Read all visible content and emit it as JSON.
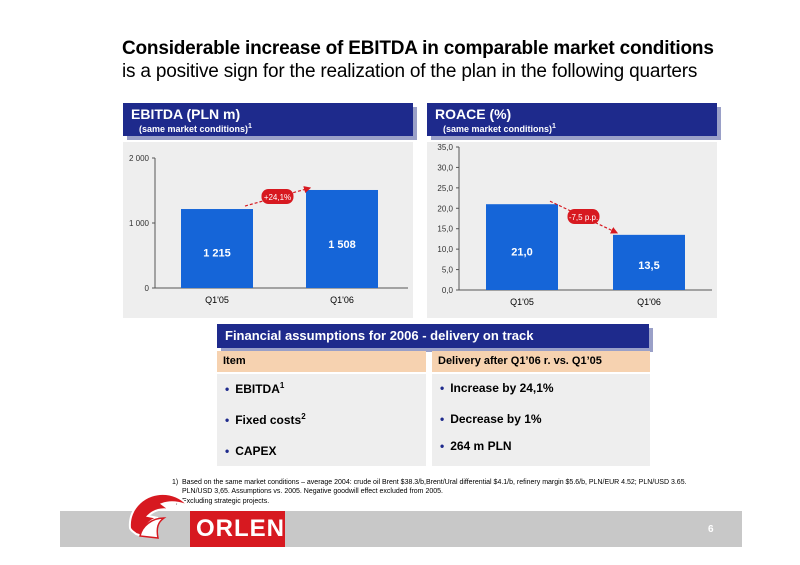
{
  "title": {
    "line1": "Considerable increase of EBITDA in comparable market conditions",
    "line2": "is a positive sign for the realization of the plan in the following quarters"
  },
  "ebitda_panel": {
    "heading": "EBITDA (PLN m)",
    "subheading": "(same market conditions)",
    "sub_sup": "1",
    "change_label": "+24,1%"
  },
  "roace_panel": {
    "heading": "ROACE (%)",
    "subheading": "(same market conditions)",
    "sub_sup": "1",
    "change_label": "-7,5 p.p."
  },
  "chart_data": [
    {
      "type": "bar",
      "title": "EBITDA (PLN m)",
      "categories": [
        "Q1'05",
        "Q1'06"
      ],
      "values": [
        1215,
        1508
      ],
      "value_labels": [
        "1 215",
        "1 508"
      ],
      "yticks": [
        "0",
        "1 000",
        "2 000"
      ],
      "ylim": [
        0,
        2000
      ],
      "bar_color": "#1565d8",
      "grid": false
    },
    {
      "type": "bar",
      "title": "ROACE (%)",
      "categories": [
        "Q1'05",
        "Q1'06"
      ],
      "values": [
        21.0,
        13.5
      ],
      "value_labels": [
        "21,0",
        "13,5"
      ],
      "yticks": [
        "0,0",
        "5,0",
        "10,0",
        "15,0",
        "20,0",
        "25,0",
        "30,0",
        "35,0"
      ],
      "ylim": [
        0,
        35
      ],
      "bar_color": "#1565d8",
      "grid": false
    }
  ],
  "assumptions": {
    "heading": "Financial assumptions for 2006  - delivery on track",
    "col_item": "Item",
    "col_delivery": "Delivery after Q1’06 r. vs. Q1’05",
    "items": [
      {
        "label": "EBITDA",
        "sup": "1",
        "delivery": "Increase by 24,1%"
      },
      {
        "label": "Fixed costs",
        "sup": "2",
        "delivery": "Decrease by 1%"
      },
      {
        "label": "CAPEX",
        "sup": "",
        "delivery": "264 m PLN"
      }
    ]
  },
  "footnotes": {
    "n1_marker": "1)",
    "n1_line1": "Based on the same market conditions – average 2004: crude oil Brent $38.3/b,Brent/Ural differential $4.1/b, refinery margin $5.6/b, PLN/EUR 4.52; PLN/USD 3.65.",
    "n1_line2": "PLN/USD 3,65. Assumptions vs. 2005. Negative goodwill effect excluded from 2005.",
    "n2_marker": "2)",
    "n2_text": "Excluding strategic projects."
  },
  "brand": {
    "logo_text": "ORLEN",
    "accent": "#d71920"
  },
  "page_number": "6"
}
